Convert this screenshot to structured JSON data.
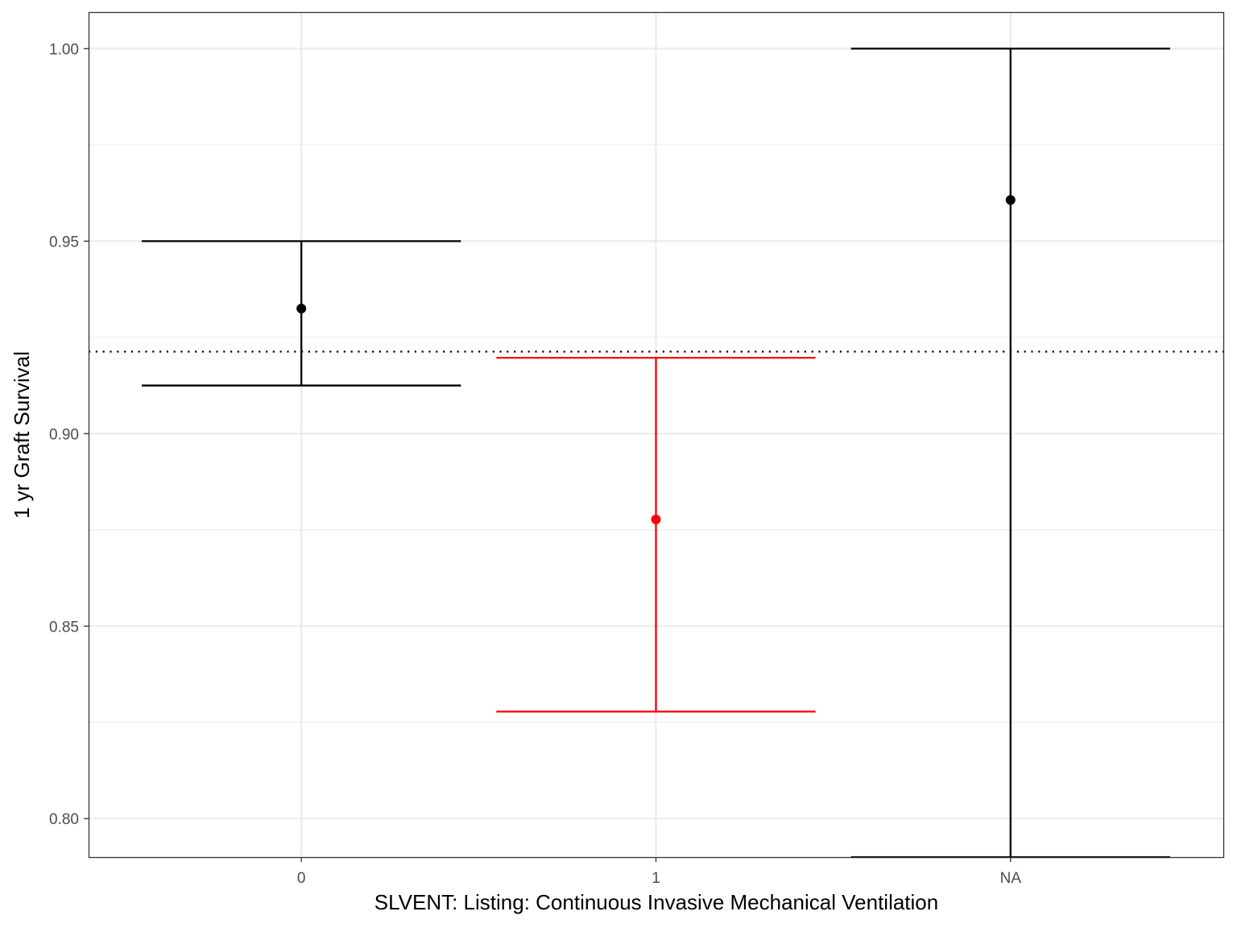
{
  "chart_data": {
    "type": "errorbar",
    "xlabel": "SLVENT: Listing: Continuous Invasive Mechanical Ventilation",
    "ylabel": "1 yr Graft Survival",
    "categories": [
      "0",
      "1",
      "NA"
    ],
    "points": [
      {
        "category": "0",
        "estimate": 0.9325,
        "lower": 0.9125,
        "upper": 0.95,
        "color": "#000000"
      },
      {
        "category": "1",
        "estimate": 0.8777,
        "lower": 0.8278,
        "upper": 0.9197,
        "color": "#ff0000"
      },
      {
        "category": "NA",
        "estimate": 0.9607,
        "lower": 0.79,
        "upper": 1.0,
        "color": "#000000"
      }
    ],
    "reference_line": {
      "y": 0.9213,
      "style": "dotted",
      "color": "#000000"
    },
    "ylim": [
      0.79,
      1.0095
    ],
    "yticks": [
      0.8,
      0.85,
      0.9,
      0.95,
      1.0
    ],
    "ytick_labels": [
      "0.80",
      "0.85",
      "0.90",
      "0.95",
      "1.00"
    ],
    "grid": true,
    "colors": {
      "highlight": "#ff0000",
      "default": "#000000",
      "grid": "#ebebeb"
    }
  }
}
